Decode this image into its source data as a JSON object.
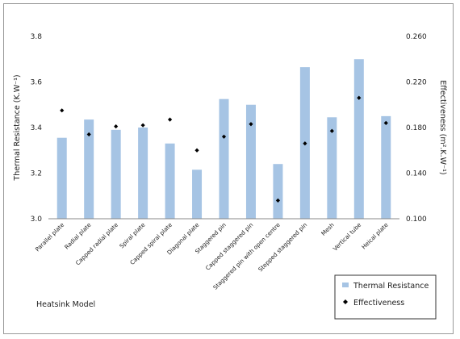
{
  "chart_data": {
    "type": "bar",
    "categories": [
      "Parallel plate",
      "Radial plate",
      "Capped radial plate",
      "Spiral plate",
      "Capped spiral plate",
      "Diagonal plate",
      "Staggered  pin",
      "Capped staggered pin",
      "Staggered  pin with open centre",
      "Stepped staggered  pin",
      "Mesh",
      "Vertical tube",
      "Heical plate"
    ],
    "series": [
      {
        "name": "Thermal Resistance",
        "kind": "bar",
        "axis": "left",
        "color": "#a6c4e4",
        "values": [
          3.355,
          3.435,
          3.39,
          3.4,
          3.33,
          3.215,
          3.525,
          3.5,
          3.24,
          3.665,
          3.445,
          3.7,
          3.45
        ]
      },
      {
        "name": "Effectiveness",
        "kind": "marker",
        "axis": "right",
        "color": "#000000",
        "values": [
          0.195,
          0.174,
          0.181,
          0.182,
          0.187,
          0.16,
          0.172,
          0.183,
          0.116,
          0.166,
          0.177,
          0.206,
          0.184
        ]
      }
    ],
    "xlabel": "Heatsink Model",
    "ylabel": "Thermal Resistance (K.W⁻¹)",
    "y2label": "Effectiveness  (m².K.W⁻¹)",
    "ylim": [
      3.0,
      3.8
    ],
    "y2lim": [
      0.1,
      0.26
    ],
    "yticks": [
      "3.0",
      "3.2",
      "3.4",
      "3.6",
      "3.8"
    ],
    "y2ticks": [
      "0.100",
      "0.140",
      "0.180",
      "0.220",
      "0.260"
    ],
    "grid": false,
    "legend": "bottom-right"
  }
}
